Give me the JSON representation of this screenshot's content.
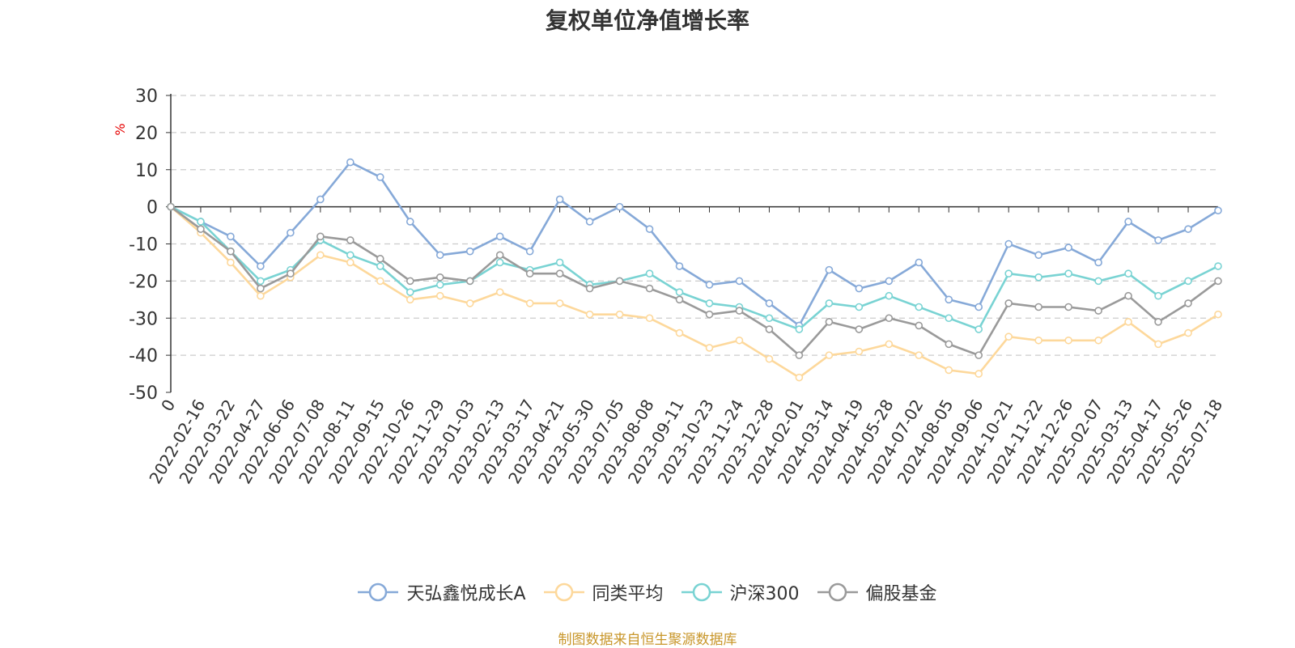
{
  "chart_data": {
    "type": "line",
    "title": "复权单位净值增长率",
    "ylabel": "%",
    "ylim": [
      -50,
      30
    ],
    "yticks": [
      30,
      20,
      10,
      0,
      -10,
      -20,
      -30,
      -40,
      -50
    ],
    "grid": true,
    "legend_position": "bottom",
    "x_ticks": [
      "0",
      "2022-02-16",
      "2022-03-22",
      "2022-04-27",
      "2022-06-06",
      "2022-07-08",
      "2022-08-11",
      "2022-09-15",
      "2022-10-26",
      "2022-11-29",
      "2023-01-03",
      "2023-02-13",
      "2023-03-17",
      "2023-04-21",
      "2023-05-30",
      "2023-07-05",
      "2023-08-08",
      "2023-09-11",
      "2023-10-23",
      "2023-11-24",
      "2023-12-28",
      "2024-02-01",
      "2024-03-14",
      "2024-04-19",
      "2024-05-28",
      "2024-07-02",
      "2024-08-05",
      "2024-09-06",
      "2024-10-21",
      "2024-11-22",
      "2024-12-26",
      "2025-02-07",
      "2025-03-13",
      "2025-04-17",
      "2025-05-26",
      "2025-07-18"
    ],
    "series": [
      {
        "name": "天弘鑫悦成长A",
        "color": "#86a9d8",
        "values": [
          0,
          -4,
          -8,
          -16,
          -7,
          2,
          12,
          8,
          -4,
          -13,
          -12,
          -8,
          -12,
          2,
          -4,
          0,
          -6,
          -16,
          -21,
          -20,
          -26,
          -32,
          -17,
          -22,
          -20,
          -15,
          -25,
          -27,
          -10,
          -13,
          -11,
          -15,
          -4,
          -9,
          -6,
          -1
        ]
      },
      {
        "name": "同类平均",
        "color": "#fdd89b",
        "values": [
          0,
          -7,
          -15,
          -24,
          -19,
          -13,
          -15,
          -20,
          -25,
          -24,
          -26,
          -23,
          -26,
          -26,
          -29,
          -29,
          -30,
          -34,
          -38,
          -36,
          -41,
          -46,
          -40,
          -39,
          -37,
          -40,
          -44,
          -45,
          -35,
          -36,
          -36,
          -36,
          -31,
          -37,
          -34,
          -29
        ]
      },
      {
        "name": "沪深300",
        "color": "#79d3d3",
        "values": [
          0,
          -4,
          -12,
          -20,
          -17,
          -9,
          -13,
          -16,
          -23,
          -21,
          -20,
          -15,
          -17,
          -15,
          -21,
          -20,
          -18,
          -23,
          -26,
          -27,
          -30,
          -33,
          -26,
          -27,
          -24,
          -27,
          -30,
          -33,
          -18,
          -19,
          -18,
          -20,
          -18,
          -24,
          -20,
          -16
        ]
      },
      {
        "name": "偏股基金",
        "color": "#9a9a9a",
        "values": [
          0,
          -6,
          -12,
          -22,
          -18,
          -8,
          -9,
          -14,
          -20,
          -19,
          -20,
          -13,
          -18,
          -18,
          -22,
          -20,
          -22,
          -25,
          -29,
          -28,
          -33,
          -40,
          -31,
          -33,
          -30,
          -32,
          -37,
          -40,
          -26,
          -27,
          -27,
          -28,
          -24,
          -31,
          -26,
          -20
        ]
      }
    ]
  },
  "legend": {
    "items": [
      "天弘鑫悦成长A",
      "同类平均",
      "沪深300",
      "偏股基金"
    ]
  },
  "footer": {
    "source": "制图数据来自恒生聚源数据库"
  }
}
